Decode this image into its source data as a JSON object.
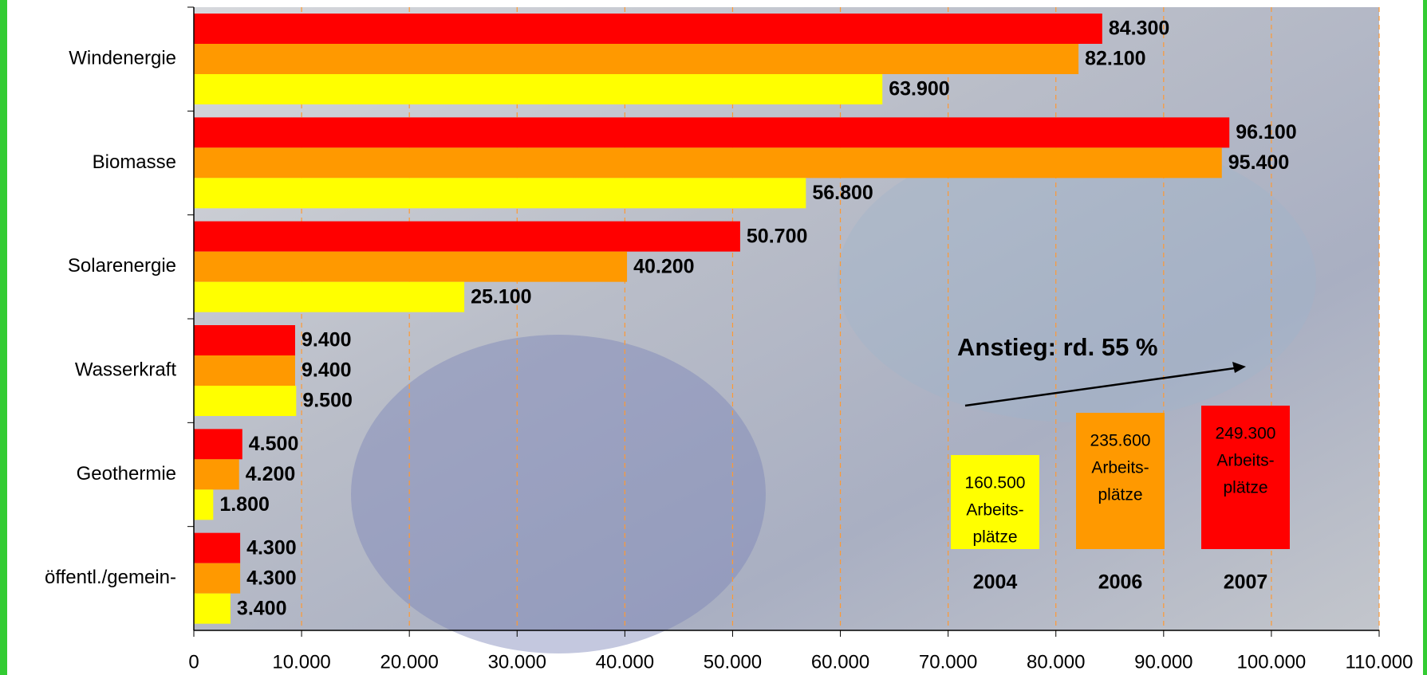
{
  "chart_data": {
    "type": "hbar",
    "categories": [
      "Windenergie",
      "Biomasse",
      "Solarenergie",
      "Wasserkraft",
      "Geothermie",
      "öffentl./gemein-"
    ],
    "series": [
      {
        "name": "2007",
        "color": "#ff0000",
        "values": [
          84300,
          96100,
          50700,
          9400,
          4500,
          4300
        ],
        "value_labels": [
          "84.300",
          "96.100",
          "50.700",
          "9.400",
          "4.500",
          "4.300"
        ],
        "total_label": "249.300",
        "note": [
          "Arbeits-",
          "plätze"
        ]
      },
      {
        "name": "2006",
        "color": "#ff9900",
        "values": [
          82100,
          95400,
          40200,
          9400,
          4200,
          4300
        ],
        "value_labels": [
          "82.100",
          "95.400",
          "40.200",
          "9.400",
          "4.200",
          "4.300"
        ],
        "total_label": "235.600",
        "note": [
          "Arbeits-",
          "plätze"
        ]
      },
      {
        "name": "2004",
        "color": "#ffff00",
        "values": [
          63900,
          56800,
          25100,
          9500,
          1800,
          3400
        ],
        "value_labels": [
          "63.900",
          "56.800",
          "25.100",
          "9.500",
          "1.800",
          "3.400"
        ],
        "total_label": "160.500",
        "note": [
          "Arbeits-",
          "plätze"
        ]
      }
    ],
    "xlim": [
      0,
      110000
    ],
    "xticks": [
      0,
      {
        "value": 10000,
        "label": "10.000"
      },
      {
        "value": 20000,
        "label": "20.000"
      },
      {
        "value": 30000,
        "label": "30.000"
      },
      {
        "value": 40000,
        "label": "40.000"
      },
      {
        "value": 50000,
        "label": "50.000"
      },
      {
        "value": 60000,
        "label": "60.000"
      },
      {
        "value": 70000,
        "label": "70.000"
      },
      {
        "value": 80000,
        "label": "80.000"
      },
      {
        "value": 90000,
        "label": "90.000"
      },
      {
        "value": 100000,
        "label": "100.000"
      },
      {
        "value": 110000,
        "label": "110.000"
      }
    ],
    "grid": true,
    "annotation": "Anstieg: rd. 55 %"
  }
}
